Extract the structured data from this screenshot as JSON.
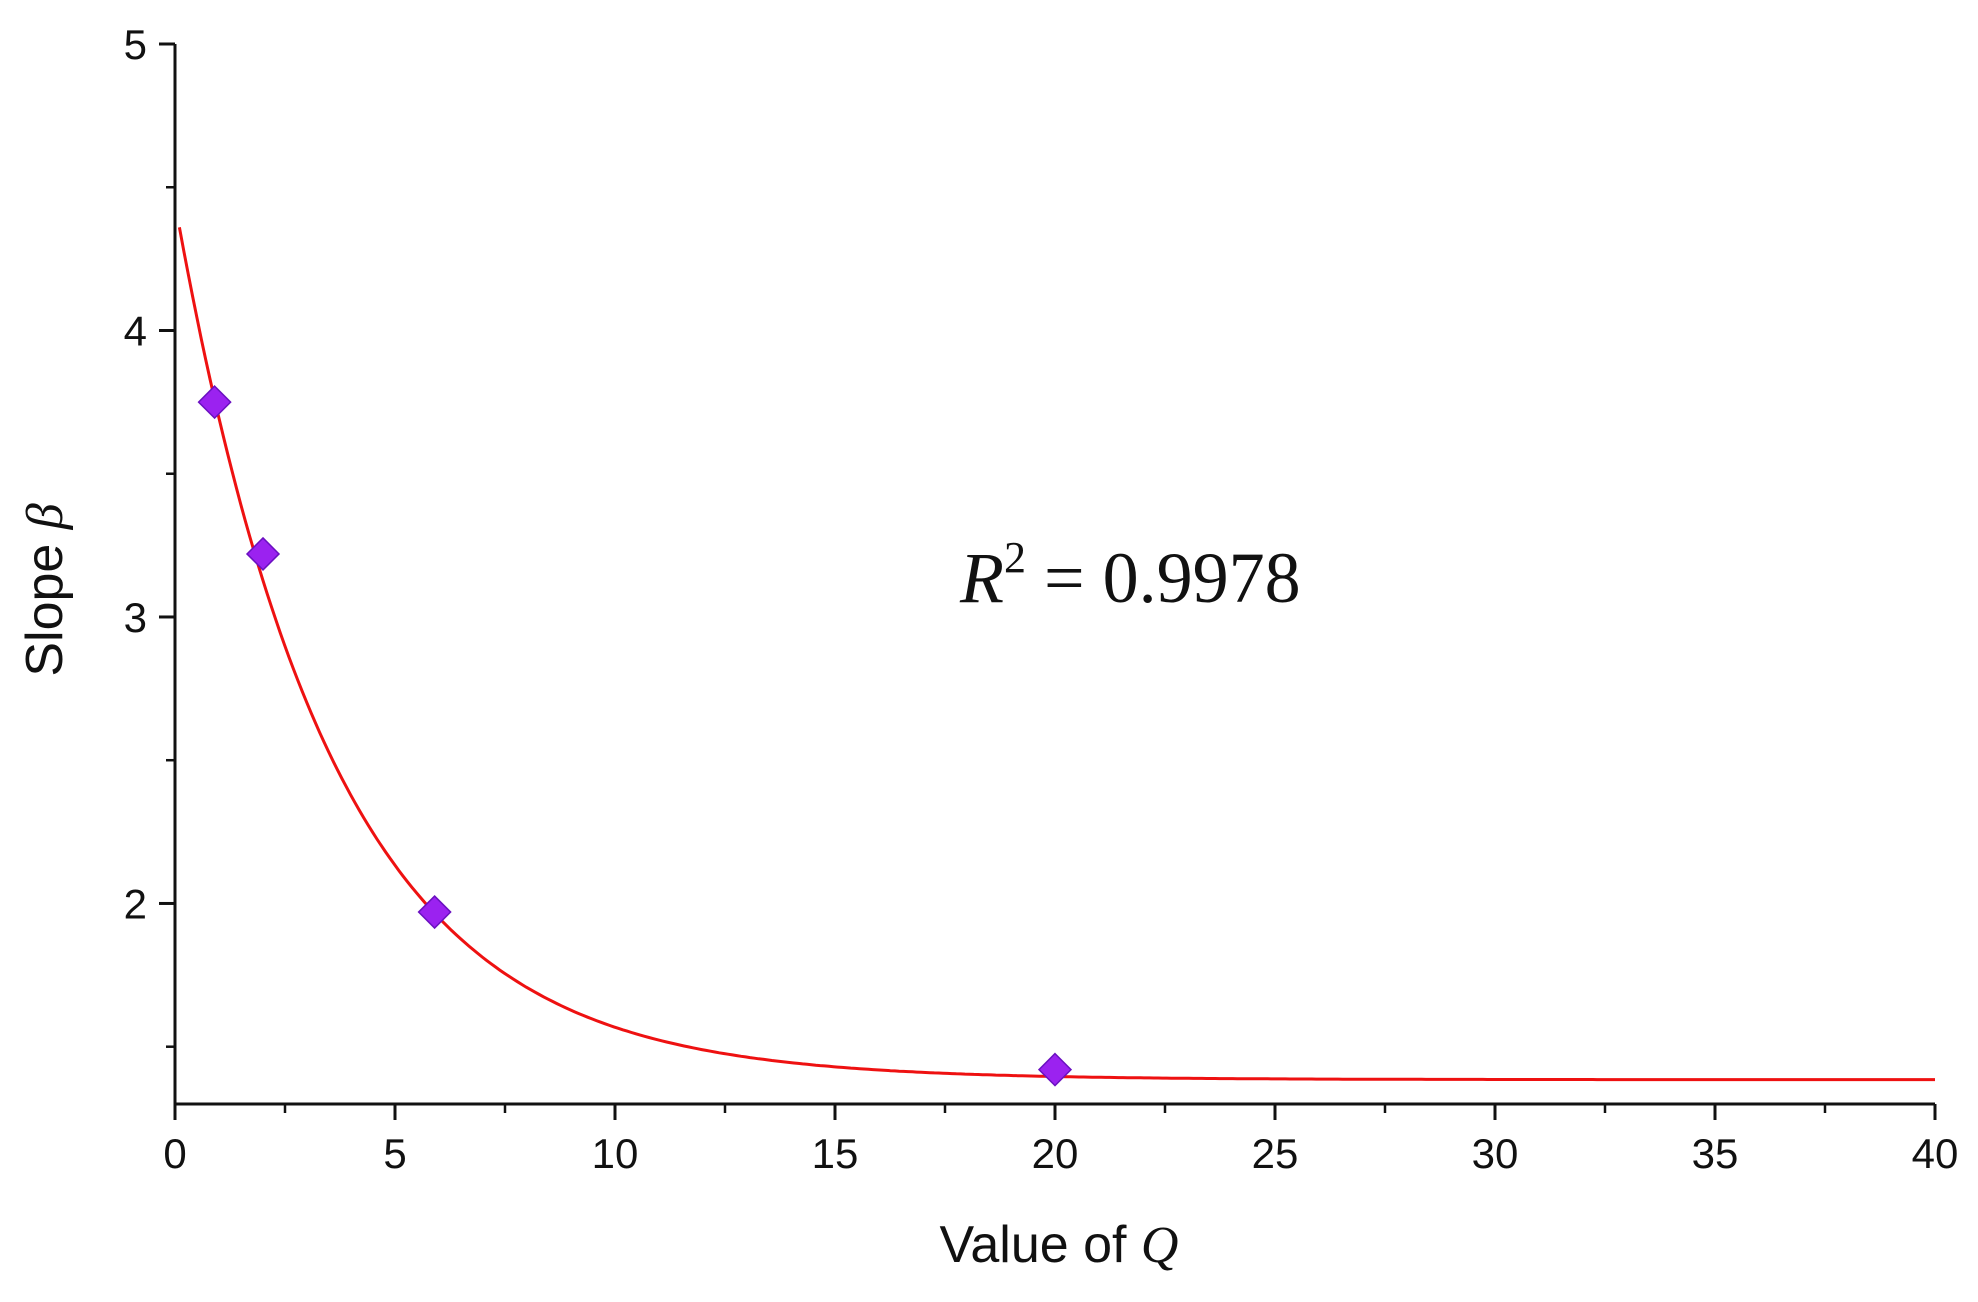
{
  "chart_data": {
    "type": "scatter",
    "xlabel": {
      "text": "Value of ",
      "symbol": "Q"
    },
    "ylabel": {
      "text": "Slope ",
      "symbol": "β"
    },
    "xlim": [
      0,
      40
    ],
    "ylim": [
      1.3,
      5
    ],
    "x_ticks": [
      0,
      5,
      10,
      15,
      20,
      25,
      30,
      35,
      40
    ],
    "x_tick_labels": [
      "0",
      "5",
      "10",
      "15",
      "20",
      "25",
      "30",
      "35",
      "40"
    ],
    "x_minor_step": 2.5,
    "y_ticks": [
      2,
      3,
      4,
      5
    ],
    "y_tick_labels": [
      "2",
      "3",
      "4",
      "5"
    ],
    "y_minor_step": 0.5,
    "grid": false,
    "legend": "none",
    "series": [
      {
        "kind": "points",
        "marker": "diamond",
        "color": "#9b22f0",
        "x": [
          0.9,
          2.0,
          5.9,
          20.0
        ],
        "y": [
          3.75,
          3.22,
          1.97,
          1.42
        ]
      },
      {
        "kind": "fit",
        "color": "#ee1111",
        "model": "exponential_decay",
        "x_start": 0.1,
        "x_end": 40,
        "y0": 1.385,
        "A": 3.06,
        "t": 3.55
      }
    ],
    "annotations": [
      {
        "symbol": "R",
        "superscript": "2",
        "text": " = 0.9978"
      }
    ]
  }
}
